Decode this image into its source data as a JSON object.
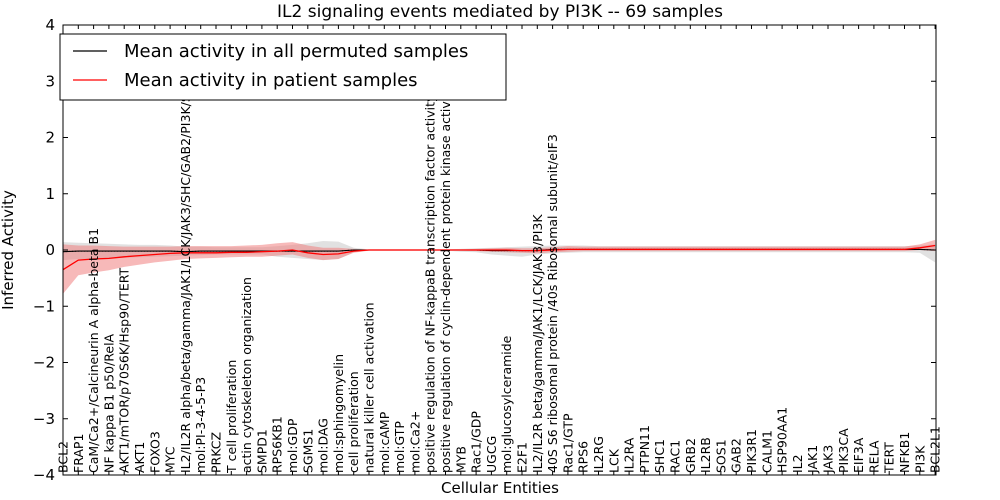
{
  "chart_data": {
    "type": "line",
    "title": "IL2 signaling events mediated by PI3K -- 69 samples",
    "xlabel": "Cellular Entities",
    "ylabel": "Inferred Activity",
    "ylim": [
      -4,
      4
    ],
    "yticks": [
      -4,
      -3,
      -2,
      -1,
      0,
      1,
      2,
      3,
      4
    ],
    "ytick_labels": [
      "−4",
      "−3",
      "−2",
      "−1",
      "0",
      "1",
      "2",
      "3",
      "4"
    ],
    "grid": false,
    "legend_position": "top-left",
    "categories": [
      "BCL2",
      "FRAP1",
      "CaM/Ca2+/Calcineurin A alpha-beta B1",
      "NF kappa B1 p50/RelA",
      "AKT1/mTOR/p70S6K/Hsp90/TERT",
      "AKT1",
      "FOXO3",
      "MYC",
      "IL2/IL2R alpha/beta/gamma/JAK1/LCK/JAK3/SHC/GAB2/PI3K/SOS1",
      "mol:PI-3-4-5-P3",
      "PRKCZ",
      "T cell proliferation",
      "actin cytoskeleton organization",
      "SMPD1",
      "RPS6KB1",
      "mol:GDP",
      "SGMS1",
      "mol:DAG",
      "mol:sphingomyelin",
      "cell proliferation",
      "natural killer cell activation",
      "mol:cAMP",
      "mol:GTP",
      "mol:Ca2+",
      "positive regulation of NF-kappaB transcription factor activity",
      "positive regulation of cyclin-dependent protein kinase activity",
      "MYB",
      "Rac1/GDP",
      "UGCG",
      "mol:glucosylceramide",
      "E2F1",
      "IL2/IL2R beta/gamma/JAK1/LCK/JAK3/PI3K",
      "40S S6 ribosomal protein /40s Ribosomal subunit/eIF3",
      "Rac1/GTP",
      "RPS6",
      "IL2RG",
      "LCK",
      "IL2RA",
      "PTPN11",
      "SHC1",
      "RAC1",
      "GRB2",
      "IL2RB",
      "SOS1",
      "GAB2",
      "PIK3R1",
      "CALM1",
      "HSP90AA1",
      "IL2",
      "JAK1",
      "JAK3",
      "PIK3CA",
      "EIF3A",
      "RELA",
      "TERT",
      "NFKB1",
      "PI3K",
      "BCL2L1"
    ],
    "series": [
      {
        "name": "Mean activity in all permuted samples",
        "color": "#000000",
        "values": [
          -0.03,
          -0.02,
          -0.02,
          -0.02,
          -0.02,
          -0.02,
          -0.02,
          -0.02,
          -0.03,
          -0.02,
          -0.02,
          -0.02,
          -0.02,
          -0.02,
          -0.02,
          -0.02,
          -0.02,
          -0.02,
          -0.02,
          0,
          0,
          0,
          0,
          0,
          0,
          0,
          0,
          0,
          -0.01,
          -0.01,
          -0.01,
          -0.01,
          0.01,
          0.01,
          0.01,
          0.01,
          0.01,
          0.01,
          0.01,
          0.01,
          0.01,
          0.01,
          0.01,
          0.01,
          0.01,
          0.01,
          0.01,
          0.01,
          0.01,
          0.01,
          0.01,
          0.01,
          0.01,
          0.01,
          0.01,
          0.01,
          0.01,
          0
        ],
        "band_low": [
          -0.18,
          -0.16,
          -0.16,
          -0.15,
          -0.14,
          -0.13,
          -0.12,
          -0.11,
          -0.1,
          -0.09,
          -0.08,
          -0.08,
          -0.08,
          -0.08,
          -0.12,
          -0.14,
          -0.16,
          -0.18,
          -0.16,
          -0.04,
          -0.01,
          -0.01,
          -0.01,
          -0.01,
          -0.01,
          -0.01,
          -0.03,
          -0.04,
          -0.08,
          -0.1,
          -0.12,
          -0.08,
          -0.06,
          -0.05,
          -0.04,
          -0.04,
          -0.04,
          -0.04,
          -0.04,
          -0.04,
          -0.04,
          -0.04,
          -0.04,
          -0.04,
          -0.04,
          -0.04,
          -0.04,
          -0.04,
          -0.04,
          -0.04,
          -0.04,
          -0.04,
          -0.04,
          -0.04,
          -0.04,
          -0.04,
          -0.05,
          -0.22
        ],
        "band_high": [
          0.14,
          0.13,
          0.12,
          0.11,
          0.1,
          0.09,
          0.09,
          0.08,
          0.06,
          0.06,
          0.05,
          0.05,
          0.05,
          0.05,
          0.07,
          0.09,
          0.12,
          0.16,
          0.15,
          0.04,
          0.01,
          0.01,
          0.01,
          0.01,
          0.01,
          0.01,
          0.02,
          0.03,
          0.04,
          0.05,
          0.06,
          0.07,
          0.08,
          0.08,
          0.08,
          0.07,
          0.07,
          0.07,
          0.07,
          0.07,
          0.07,
          0.07,
          0.07,
          0.07,
          0.07,
          0.07,
          0.07,
          0.07,
          0.07,
          0.07,
          0.07,
          0.07,
          0.07,
          0.07,
          0.07,
          0.07,
          0.08,
          0.1
        ]
      },
      {
        "name": "Mean activity in patient samples",
        "color": "#ff0000",
        "band_color": "#f08080",
        "values": [
          -0.35,
          -0.18,
          -0.16,
          -0.15,
          -0.12,
          -0.1,
          -0.08,
          -0.06,
          -0.05,
          -0.05,
          -0.05,
          -0.04,
          -0.04,
          -0.03,
          -0.02,
          0,
          -0.05,
          -0.08,
          -0.07,
          -0.02,
          0,
          0,
          0,
          0,
          0,
          0,
          0,
          0,
          0,
          0,
          -0.01,
          -0.01,
          0,
          0.01,
          0.01,
          0.01,
          0.01,
          0.01,
          0.01,
          0.01,
          0.01,
          0.01,
          0.01,
          0.01,
          0.01,
          0.01,
          0.01,
          0.01,
          0.01,
          0.01,
          0.01,
          0.01,
          0.01,
          0.01,
          0.01,
          0.01,
          0.04,
          0.08
        ],
        "band_low": [
          -0.78,
          -0.45,
          -0.4,
          -0.36,
          -0.3,
          -0.26,
          -0.22,
          -0.19,
          -0.16,
          -0.15,
          -0.14,
          -0.13,
          -0.12,
          -0.12,
          -0.1,
          -0.08,
          -0.14,
          -0.18,
          -0.16,
          -0.05,
          -0.01,
          -0.01,
          -0.01,
          -0.01,
          -0.01,
          -0.01,
          -0.01,
          -0.02,
          -0.03,
          -0.04,
          -0.05,
          -0.06,
          -0.04,
          -0.03,
          -0.02,
          -0.02,
          -0.02,
          -0.02,
          -0.02,
          -0.02,
          -0.02,
          -0.02,
          -0.02,
          -0.02,
          -0.02,
          -0.02,
          -0.02,
          -0.02,
          -0.02,
          -0.02,
          -0.02,
          -0.02,
          -0.02,
          -0.02,
          -0.02,
          -0.02,
          0,
          -0.02
        ],
        "band_high": [
          0.1,
          0.08,
          0.08,
          0.07,
          0.06,
          0.06,
          0.06,
          0.06,
          0.07,
          0.07,
          0.07,
          0.07,
          0.08,
          0.09,
          0.12,
          0.14,
          0.08,
          0.04,
          0.04,
          0.02,
          0.01,
          0.01,
          0.01,
          0.01,
          0.01,
          0.01,
          0.01,
          0.02,
          0.03,
          0.04,
          0.03,
          0.03,
          0.05,
          0.07,
          0.06,
          0.06,
          0.06,
          0.06,
          0.06,
          0.06,
          0.06,
          0.06,
          0.06,
          0.06,
          0.06,
          0.06,
          0.06,
          0.06,
          0.06,
          0.06,
          0.06,
          0.06,
          0.06,
          0.06,
          0.06,
          0.06,
          0.1,
          0.18
        ]
      }
    ]
  }
}
